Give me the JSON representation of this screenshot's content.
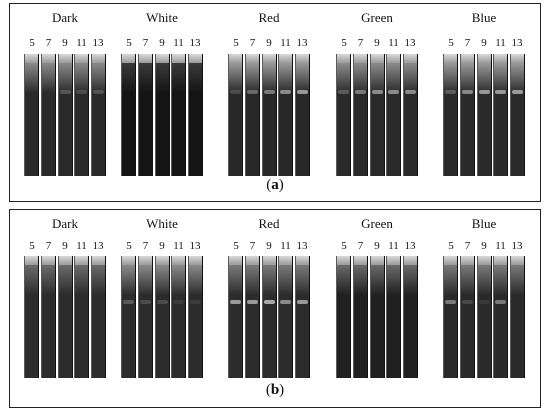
{
  "lane_labels": [
    "5",
    "7",
    "9",
    "11",
    "13"
  ],
  "panels": [
    {
      "caption_open": "(",
      "caption_letter": "a",
      "caption_close": ")",
      "groups": [
        {
          "title": "Dark",
          "strip_color": "#2a2a2a",
          "glow": "#8a8a8a",
          "band_level": [
            0.0,
            0.0,
            0.25,
            0.2,
            0.25
          ]
        },
        {
          "title": "White",
          "strip_color": "#141414",
          "glow": "#3a3a3a",
          "band_level": [
            0.0,
            0.0,
            0.0,
            0.0,
            0.0
          ]
        },
        {
          "title": "Red",
          "strip_color": "#282828",
          "glow": "#9a9a9a",
          "band_level": [
            0.2,
            0.4,
            0.5,
            0.6,
            0.7
          ]
        },
        {
          "title": "Green",
          "strip_color": "#2a2a2a",
          "glow": "#8c8c8c",
          "band_level": [
            0.3,
            0.5,
            0.6,
            0.6,
            0.6
          ]
        },
        {
          "title": "Blue",
          "strip_color": "#2a2a2a",
          "glow": "#999999",
          "band_level": [
            0.3,
            0.6,
            0.7,
            0.7,
            0.7
          ]
        }
      ]
    },
    {
      "caption_open": "(",
      "caption_letter": "b",
      "caption_close": ")",
      "groups": [
        {
          "title": "Dark",
          "strip_color": "#2c2c2c",
          "glow": "#6a6a6a",
          "band_level": [
            0.0,
            0.0,
            0.0,
            0.0,
            0.0
          ]
        },
        {
          "title": "White",
          "strip_color": "#2c2c2c",
          "glow": "#8a8a8a",
          "band_level": [
            0.3,
            0.2,
            0.2,
            0.1,
            0.1
          ]
        },
        {
          "title": "Red",
          "strip_color": "#2c2c2c",
          "glow": "#7a7a7a",
          "band_level": [
            0.7,
            0.7,
            0.8,
            0.6,
            0.7
          ]
        },
        {
          "title": "Green",
          "strip_color": "#202020",
          "glow": "#6a6a6a",
          "band_level": [
            0.0,
            0.0,
            0.0,
            0.0,
            0.0
          ]
        },
        {
          "title": "Blue",
          "strip_color": "#2a2a2a",
          "glow": "#7a7a7a",
          "band_level": [
            0.5,
            0.2,
            0.1,
            0.5,
            0.0
          ]
        }
      ]
    }
  ]
}
